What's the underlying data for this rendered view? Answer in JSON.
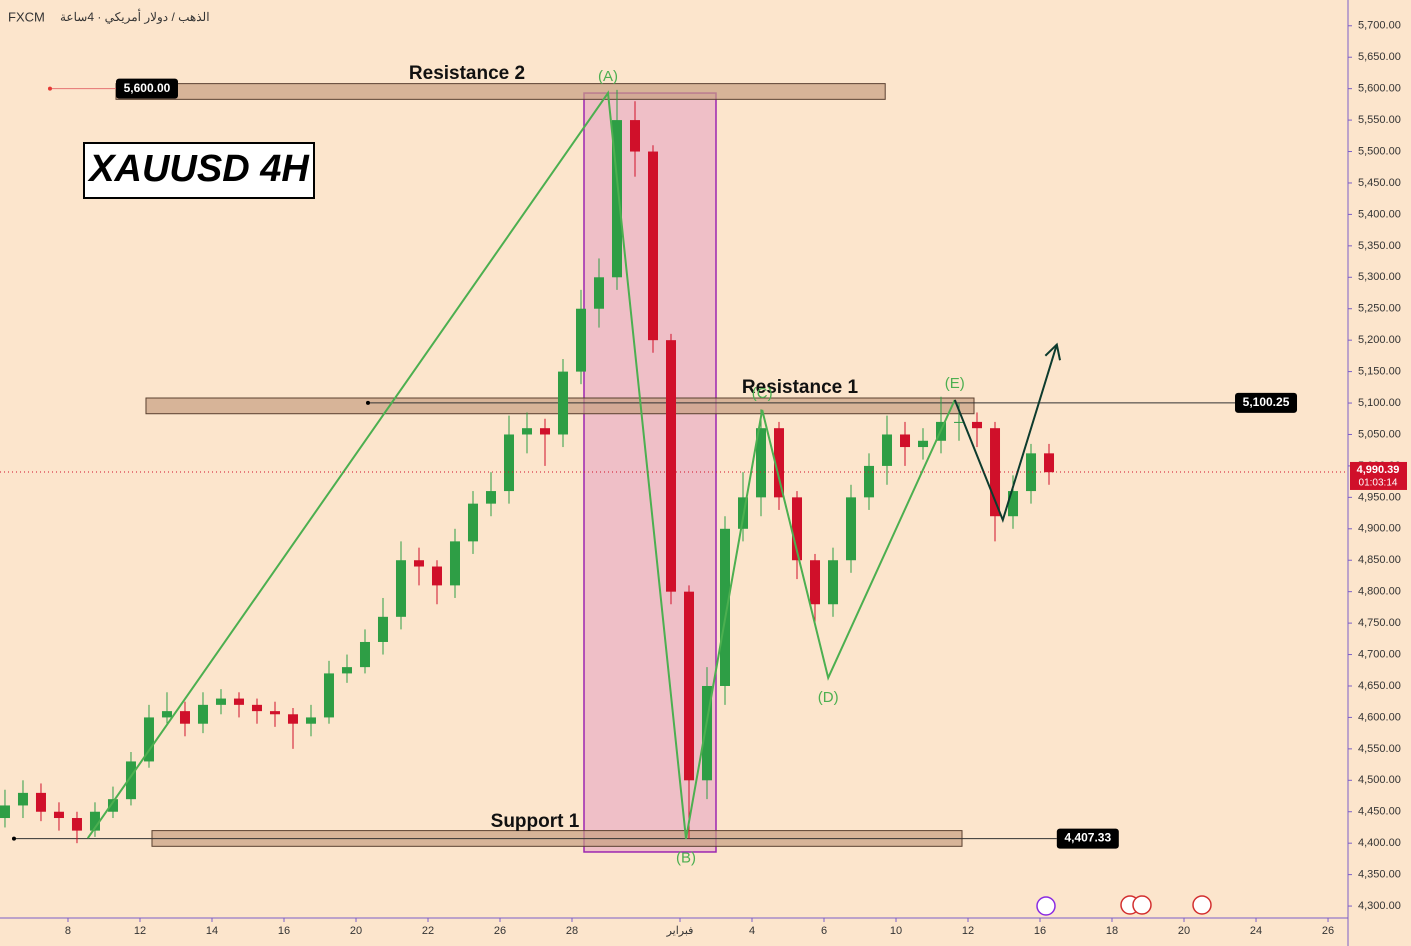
{
  "chart_data": {
    "type": "candlestick",
    "source": "FXCM",
    "symbol_text": "الذهب / دولار أمريكي · 4ساعة",
    "title": "XAUUSD 4H",
    "x": [
      -10.5,
      -7.5,
      -4.5,
      -1.5,
      1.5,
      4.5,
      7.5,
      10.5,
      13.5,
      16.5,
      19.5,
      22.5,
      25.5,
      28.5,
      31.5,
      34.5,
      37.5,
      40.5,
      43.5,
      46.5,
      49.5,
      52.5,
      55.5,
      58.5,
      61.5,
      64.5,
      67.5,
      70.5,
      73.5,
      76.5,
      79.5,
      82.5,
      85.5,
      88.5,
      91.5,
      94.5,
      97.5,
      100.5,
      103.5,
      106.5,
      109.5,
      112.5,
      115.5,
      118.5,
      121.5,
      124.5,
      127.5,
      130.5,
      133.5,
      136.5,
      139.5,
      142.5,
      145.5,
      148.5,
      151.5,
      154.5,
      157.5,
      160.5,
      163.5
    ],
    "open": [
      4440,
      4460,
      4480,
      4450,
      4440,
      4420,
      4450,
      4470,
      4530,
      4600,
      4610,
      4590,
      4620,
      4630,
      4620,
      4610,
      4605,
      4590,
      4600,
      4670,
      4680,
      4720,
      4760,
      4850,
      4840,
      4810,
      4880,
      4940,
      4960,
      5050,
      5060,
      5050,
      5150,
      5250,
      5300,
      5550,
      5500,
      5200,
      4800,
      4500,
      4650,
      4900,
      4950,
      5060,
      4950,
      4850,
      4780,
      4850,
      4950,
      5000,
      5050,
      5030,
      5040,
      5070,
      5070,
      5060,
      4920,
      4960,
      5020
    ],
    "high": [
      4485,
      4500,
      4495,
      4465,
      4450,
      4465,
      4490,
      4545,
      4620,
      4640,
      4625,
      4640,
      4645,
      4640,
      4630,
      4625,
      4615,
      4620,
      4690,
      4700,
      4740,
      4790,
      4880,
      4870,
      4850,
      4900,
      4960,
      4990,
      5080,
      5085,
      5075,
      5170,
      5280,
      5330,
      5598,
      5580,
      5510,
      5210,
      4810,
      4680,
      4920,
      4990,
      5090,
      5070,
      4960,
      4860,
      4870,
      4970,
      5020,
      5080,
      5070,
      5060,
      5110,
      5100,
      5085,
      5070,
      4985,
      5035,
      5035
    ],
    "low": [
      4425,
      4440,
      4435,
      4420,
      4400,
      4410,
      4440,
      4460,
      4520,
      4590,
      4570,
      4575,
      4605,
      4600,
      4590,
      4585,
      4550,
      4570,
      4590,
      4655,
      4670,
      4700,
      4740,
      4810,
      4780,
      4790,
      4860,
      4920,
      4940,
      5020,
      5000,
      5030,
      5130,
      5220,
      5280,
      5460,
      5180,
      4780,
      4407,
      4470,
      4620,
      4880,
      4920,
      4930,
      4820,
      4750,
      4760,
      4830,
      4930,
      4970,
      5000,
      5010,
      5020,
      5040,
      5030,
      4880,
      4900,
      4940,
      4970
    ],
    "close": [
      4460,
      4480,
      4450,
      4440,
      4420,
      4450,
      4470,
      4530,
      4600,
      4610,
      4590,
      4620,
      4630,
      4620,
      4610,
      4605,
      4590,
      4600,
      4670,
      4680,
      4720,
      4760,
      4850,
      4840,
      4810,
      4880,
      4940,
      4960,
      5050,
      5060,
      5050,
      5150,
      5250,
      5300,
      5550,
      5500,
      5200,
      4800,
      4500,
      4650,
      4900,
      4950,
      5060,
      4950,
      4850,
      4780,
      4850,
      4950,
      5000,
      5050,
      5030,
      5040,
      5070,
      5070,
      5060,
      4920,
      4960,
      5020,
      4990
    ],
    "up_color": "#2e9e45",
    "down_color": "#d0102a",
    "xlim": [
      -11.33,
      213.33
    ],
    "ylim": [
      4281,
      5741
    ],
    "xticks": [
      {
        "value": 0,
        "label": "8"
      },
      {
        "value": 12,
        "label": "12"
      },
      {
        "value": 24,
        "label": "14"
      },
      {
        "value": 36,
        "label": "16"
      },
      {
        "value": 48,
        "label": "20"
      },
      {
        "value": 60,
        "label": "22"
      },
      {
        "value": 72,
        "label": "26"
      },
      {
        "value": 84,
        "label": "28"
      },
      {
        "value": 102,
        "label": "فبراير"
      },
      {
        "value": 114,
        "label": "4"
      },
      {
        "value": 126,
        "label": "6"
      },
      {
        "value": 138,
        "label": "10"
      },
      {
        "value": 150,
        "label": "12"
      },
      {
        "value": 162,
        "label": "16"
      },
      {
        "value": 174,
        "label": "18"
      },
      {
        "value": 186,
        "label": "20"
      },
      {
        "value": 198,
        "label": "24"
      },
      {
        "value": 210,
        "label": "26"
      }
    ],
    "yticks": [
      {
        "value": 4300,
        "label": "4,300.00"
      },
      {
        "value": 4350,
        "label": "4,350.00"
      },
      {
        "value": 4400,
        "label": "4,400.00"
      },
      {
        "value": 4450,
        "label": "4,450.00"
      },
      {
        "value": 4500,
        "label": "4,500.00"
      },
      {
        "value": 4550,
        "label": "4,550.00"
      },
      {
        "value": 4600,
        "label": "4,600.00"
      },
      {
        "value": 4650,
        "label": "4,650.00"
      },
      {
        "value": 4700,
        "label": "4,700.00"
      },
      {
        "value": 4750,
        "label": "4,750.00"
      },
      {
        "value": 4800,
        "label": "4,800.00"
      },
      {
        "value": 4850,
        "label": "4,850.00"
      },
      {
        "value": 4900,
        "label": "4,900.00"
      },
      {
        "value": 4950,
        "label": "4,950.00"
      },
      {
        "value": 5000,
        "label": "5,000.00"
      },
      {
        "value": 5050,
        "label": "5,050.00"
      },
      {
        "value": 5100,
        "label": "5,100.00"
      },
      {
        "value": 5150,
        "label": "5,150.00"
      },
      {
        "value": 5200,
        "label": "5,200.00"
      },
      {
        "value": 5250,
        "label": "5,250.00"
      },
      {
        "value": 5300,
        "label": "5,300.00"
      },
      {
        "value": 5350,
        "label": "5,350.00"
      },
      {
        "value": 5400,
        "label": "5,400.00"
      },
      {
        "value": 5450,
        "label": "5,450.00"
      },
      {
        "value": 5500,
        "label": "5,500.00"
      },
      {
        "value": 5550,
        "label": "5,550.00"
      },
      {
        "value": 5600,
        "label": "5,600.00"
      },
      {
        "value": 5650,
        "label": "5,650.00"
      },
      {
        "value": 5700,
        "label": "5,700.00"
      }
    ],
    "zones": [
      {
        "label": "Resistance 2",
        "top": 5608,
        "bottom": 5583,
        "start": 8,
        "end": 136.2
      },
      {
        "label": "Resistance 1",
        "top": 5108,
        "bottom": 5083,
        "start": 13,
        "end": 151
      },
      {
        "label": "Support 1",
        "top": 4420,
        "bottom": 4395,
        "start": 14,
        "end": 149
      }
    ],
    "levels": [
      {
        "value": 5600,
        "label": "5,600.00",
        "start": -3,
        "end": 8
      },
      {
        "value": 5100.25,
        "label": "5,100.25",
        "start": 50,
        "end": 194.5
      },
      {
        "value": 4407.33,
        "label": "4,407.33",
        "start": -9,
        "end": 164.8
      }
    ],
    "current": {
      "value": 4990.39,
      "label": "4,990.39",
      "countdown": "01:03:14"
    },
    "highlight": {
      "start": 86,
      "end": 108,
      "top": 5593,
      "bottom": 4386
    },
    "wave_line": {
      "x": [
        3.3,
        90,
        103,
        115.7,
        126.7,
        147.8
      ],
      "y": [
        4408,
        5593,
        4407,
        5089,
        4663,
        5105
      ]
    },
    "waves": [
      {
        "label": "(A)",
        "x": 90,
        "y": 5593
      },
      {
        "label": "(B)",
        "x": 103,
        "y": 4407
      },
      {
        "label": "(C)",
        "x": 115.7,
        "y": 5089
      },
      {
        "label": "(D)",
        "x": 126.7,
        "y": 4663
      },
      {
        "label": "(E)",
        "x": 147.8,
        "y": 5105
      }
    ],
    "projection": {
      "x": [
        147.8,
        155.8,
        164.8
      ],
      "y": [
        5105,
        4914,
        5193
      ]
    }
  }
}
